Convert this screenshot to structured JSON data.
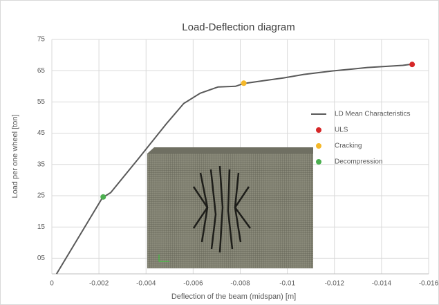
{
  "chart_data": {
    "type": "line",
    "title": "Load-Deflection diagram",
    "x_label": "Deflection of the beam (midspan) [m]",
    "y_label": "Load per one wheel [ton]",
    "xlim": [
      0,
      -0.016
    ],
    "xticks": [
      0,
      -0.002,
      -0.004,
      -0.006,
      -0.008,
      -0.01,
      -0.012,
      -0.014,
      -0.016
    ],
    "ylim": [
      0,
      75
    ],
    "yticks": [
      {
        "value": 5,
        "label": "05"
      },
      15,
      25,
      35,
      45,
      55,
      65,
      75
    ],
    "grid": true,
    "legend": "right",
    "series": [
      {
        "name": "LD Mean Characteristics",
        "color": "#595959",
        "style": "line",
        "x": [
          -0.0002,
          -0.00215,
          -0.0025,
          -0.00368,
          -0.00485,
          -0.0056,
          -0.0063,
          -0.00706,
          -0.0078,
          -0.00815,
          -0.009,
          -0.00985,
          -0.0107,
          -0.0119,
          -0.0134,
          -0.0149,
          -0.0153
        ],
        "values": [
          0,
          24.4,
          26,
          36.9,
          47.9,
          54.5,
          57.8,
          59.8,
          60,
          60.9,
          61.8,
          62.7,
          63.8,
          64.9,
          66,
          66.7,
          67.1
        ]
      },
      {
        "name": "ULS",
        "color": "#d62728",
        "style": "point",
        "x": [
          -0.0153
        ],
        "values": [
          67
        ]
      },
      {
        "name": "Cracking",
        "color": "#f5b829",
        "style": "point",
        "x": [
          -0.00815
        ],
        "values": [
          61
        ]
      },
      {
        "name": "Decompression",
        "color": "#4caf50",
        "style": "point",
        "x": [
          -0.00218
        ],
        "values": [
          24.6
        ]
      }
    ]
  }
}
